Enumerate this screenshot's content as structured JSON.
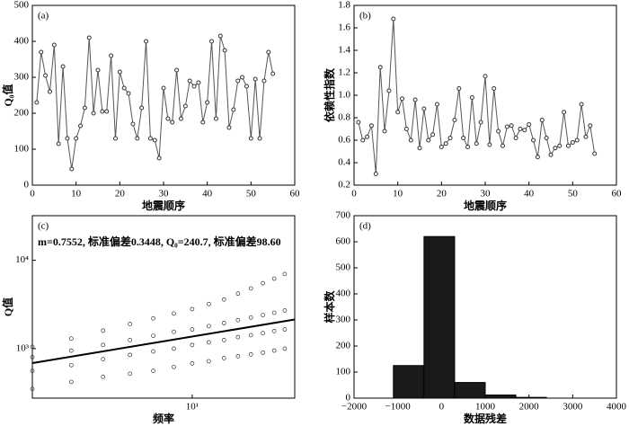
{
  "chart_data": [
    {
      "type": "line",
      "panel_label": "(a)",
      "xlabel": "地震顺序",
      "ylabel": "Q₀值",
      "color": "#555555",
      "x": [
        1,
        2,
        3,
        4,
        5,
        6,
        7,
        8,
        9,
        10,
        11,
        12,
        13,
        14,
        15,
        16,
        17,
        18,
        19,
        20,
        21,
        22,
        23,
        24,
        25,
        26,
        27,
        28,
        29,
        30,
        31,
        32,
        33,
        34,
        35,
        36,
        37,
        38,
        39,
        40,
        41,
        42,
        43,
        44,
        45,
        46,
        47,
        48,
        49,
        50,
        51,
        52,
        53,
        54,
        55
      ],
      "values": [
        230,
        370,
        305,
        260,
        390,
        115,
        330,
        130,
        45,
        130,
        165,
        215,
        410,
        200,
        320,
        205,
        205,
        360,
        130,
        315,
        270,
        255,
        170,
        130,
        215,
        400,
        130,
        125,
        75,
        270,
        185,
        175,
        320,
        185,
        220,
        290,
        275,
        285,
        175,
        230,
        400,
        185,
        415,
        375,
        160,
        210,
        290,
        300,
        275,
        130,
        295,
        130,
        290,
        370,
        310
      ],
      "xlim": [
        0,
        60
      ],
      "xticks": [
        0,
        10,
        20,
        30,
        40,
        50,
        60
      ],
      "ylim": [
        0,
        500
      ],
      "yticks": [
        0,
        100,
        200,
        300,
        400,
        500
      ]
    },
    {
      "type": "line",
      "panel_label": "(b)",
      "xlabel": "地震顺序",
      "ylabel": "依赖性指数",
      "color": "#555555",
      "x": [
        1,
        2,
        3,
        4,
        5,
        6,
        7,
        8,
        9,
        10,
        11,
        12,
        13,
        14,
        15,
        16,
        17,
        18,
        19,
        20,
        21,
        22,
        23,
        24,
        25,
        26,
        27,
        28,
        29,
        30,
        31,
        32,
        33,
        34,
        35,
        36,
        37,
        38,
        39,
        40,
        41,
        42,
        43,
        44,
        45,
        46,
        47,
        48,
        49,
        50,
        51,
        52,
        53,
        54,
        55
      ],
      "values": [
        0.76,
        0.6,
        0.63,
        0.73,
        0.3,
        1.25,
        0.68,
        1.04,
        1.68,
        0.85,
        0.97,
        0.7,
        0.6,
        0.96,
        0.53,
        0.88,
        0.6,
        0.65,
        0.92,
        0.54,
        0.57,
        0.62,
        0.78,
        1.06,
        0.62,
        0.54,
        0.98,
        0.57,
        0.76,
        1.17,
        0.56,
        1.06,
        0.68,
        0.55,
        0.72,
        0.73,
        0.62,
        0.7,
        0.69,
        0.74,
        0.6,
        0.45,
        0.78,
        0.62,
        0.47,
        0.53,
        0.55,
        0.85,
        0.55,
        0.58,
        0.6,
        0.92,
        0.63,
        0.73,
        0.48
      ],
      "xlim": [
        0,
        60
      ],
      "xticks": [
        0,
        10,
        20,
        30,
        40,
        50,
        60
      ],
      "ylim": [
        0.2,
        1.8
      ],
      "yticks": [
        0.2,
        0.4,
        0.6,
        0.8,
        {
          "value": 1,
          "label": "1.0"
        },
        1.2,
        1.4,
        1.6,
        1.8
      ]
    },
    {
      "type": "scatter",
      "panel_label": "(c)",
      "xlabel": "频率",
      "ylabel": "Q值",
      "color": "#000000",
      "annotation": "m=0.7552, 标准偏差0.3448, Q₀=240.7, 标准偏差98.60",
      "log_x": true,
      "log_y": true,
      "x": [
        4,
        4,
        4,
        4,
        5,
        5,
        5,
        5,
        6,
        6,
        6,
        6,
        7,
        7,
        7,
        7,
        8,
        8,
        8,
        8,
        9,
        9,
        9,
        9,
        10,
        10,
        10,
        10,
        11,
        11,
        11,
        11,
        12,
        12,
        12,
        12,
        13,
        13,
        13,
        13,
        14,
        14,
        14,
        14,
        15,
        15,
        15,
        15,
        16,
        16,
        16,
        16,
        17,
        17,
        17,
        17
      ],
      "values": [
        350,
        560,
        800,
        1050,
        420,
        650,
        950,
        1300,
        480,
        760,
        1100,
        1600,
        520,
        850,
        1250,
        1900,
        560,
        930,
        1400,
        2200,
        620,
        1000,
        1550,
        2500,
        680,
        1100,
        1650,
        2800,
        720,
        1180,
        1800,
        3200,
        780,
        1250,
        1950,
        3600,
        820,
        1350,
        2100,
        4200,
        860,
        1420,
        2250,
        4800,
        900,
        1500,
        2400,
        5500,
        950,
        1580,
        2550,
        6200,
        1000,
        1650,
        2700,
        7000
      ],
      "fit_x": [
        4,
        18
      ],
      "fit_values": [
        686,
        2135
      ],
      "xlim": [
        4,
        18
      ],
      "xticks": [
        {
          "value": 10,
          "label": "10¹"
        }
      ],
      "ylim": [
        275,
        32000
      ],
      "yticks": [
        {
          "value": 1000,
          "label": "10³"
        },
        {
          "value": 10000,
          "label": "10⁴"
        }
      ]
    },
    {
      "type": "histogram",
      "panel_label": "(d)",
      "xlabel": "数据残差",
      "ylabel": "样本数",
      "color": "#1a1a1a",
      "bins": [
        -1100,
        -400,
        300,
        1000,
        1700,
        2400
      ],
      "counts": [
        125,
        620,
        60,
        12,
        3
      ],
      "xlim": [
        -2000,
        4000
      ],
      "xticks": [
        {
          "value": -2000,
          "label": "−2000"
        },
        {
          "value": -1000,
          "label": "−1000"
        },
        0,
        1000,
        2000,
        3000,
        4000
      ],
      "ylim": [
        0,
        700
      ],
      "yticks": [
        0,
        100,
        200,
        300,
        400,
        500,
        600,
        700
      ]
    }
  ]
}
